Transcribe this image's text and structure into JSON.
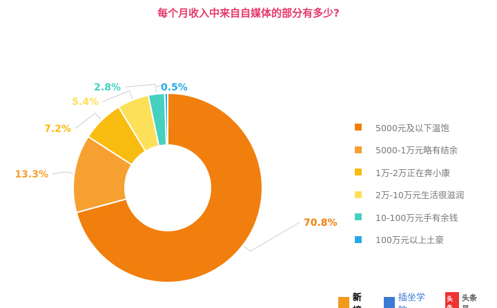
{
  "chart_data": {
    "type": "pie",
    "title": "每个月收入中来自自媒体的部分有多少?",
    "categories": [
      "5000元及以下温饱",
      "5000-1万元略有结余",
      "1万-2万正在奔小康",
      "2万-10万元生活很滋润",
      "10-100万元手有余钱",
      "100万元以上土豪"
    ],
    "values": [
      70.8,
      13.3,
      7.2,
      5.4,
      2.8,
      0.5
    ],
    "labels": [
      "70.8%",
      "13.3%",
      "7.2%",
      "5.4%",
      "2.8%",
      "0.5%"
    ],
    "colors": [
      "#f07f0d",
      "#f5a030",
      "#f8bb10",
      "#fde05a",
      "#45d0c0",
      "#27a9e8"
    ],
    "donut": true,
    "legend": "right"
  },
  "logos": {
    "xinbang": "新榜",
    "zhizuo": "插坐学院",
    "toutiao_badge": "头条",
    "toutiao": "头条号"
  }
}
